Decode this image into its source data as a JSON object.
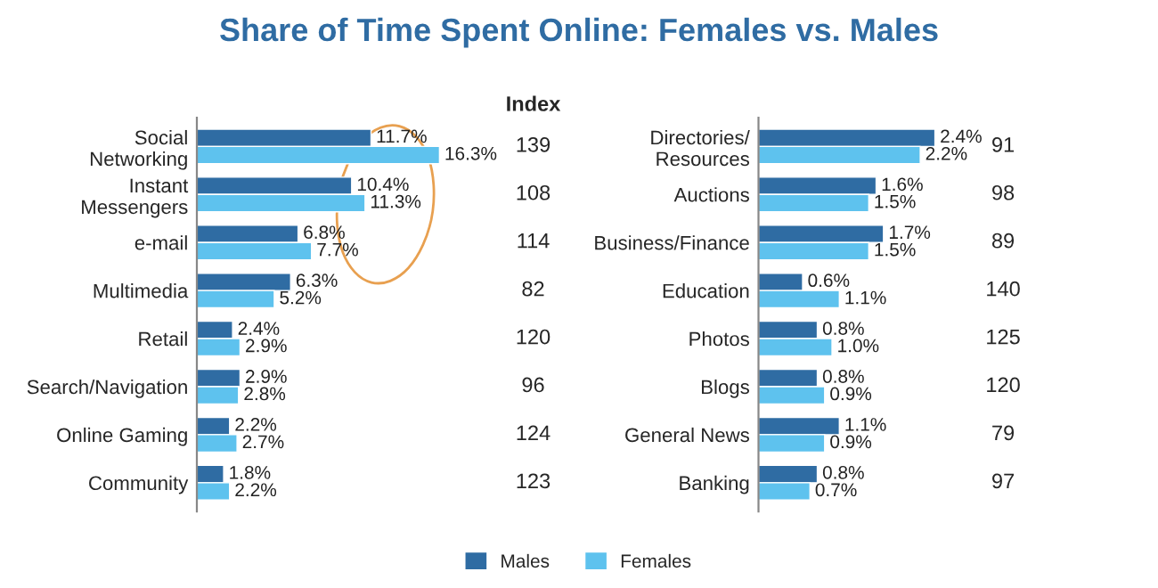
{
  "chart_data": [
    {
      "type": "bar",
      "orientation": "horizontal",
      "title": "Share of Time Spent Online: Females vs. Males",
      "categories": [
        "Social\nNetworking",
        "Instant\nMessengers",
        "e-mail",
        "Multimedia",
        "Retail",
        "Search/Navigation",
        "Online Gaming",
        "Community"
      ],
      "series": [
        {
          "name": "Males",
          "color": "#2f6ca3",
          "values": [
            11.7,
            10.4,
            6.8,
            6.3,
            2.4,
            2.9,
            2.2,
            1.8
          ],
          "value_labels": [
            "11.7%",
            "10.4%",
            "6.8%",
            "6.3%",
            "2.4%",
            "2.9%",
            "2.2%",
            "1.8%"
          ]
        },
        {
          "name": "Females",
          "color": "#5ec2ee",
          "values": [
            16.3,
            11.3,
            7.7,
            5.2,
            2.9,
            2.8,
            2.7,
            2.2
          ],
          "value_labels": [
            "16.3%",
            "11.3%",
            "7.7%",
            "5.2%",
            "2.9%",
            "2.8%",
            "2.7%",
            "2.2%"
          ]
        }
      ],
      "annotations": [
        "Index",
        "139",
        "108",
        "114",
        "82",
        "120",
        "96",
        "124",
        "123"
      ],
      "tick_labels": "y",
      "legend": "bottom"
    },
    {
      "type": "bar",
      "orientation": "horizontal",
      "categories": [
        "Directories/\nResources",
        "Auctions",
        "Business/Finance",
        "Education",
        "Photos",
        "Blogs",
        "General News",
        "Banking"
      ],
      "series": [
        {
          "color": "#2f6ca3",
          "values": [
            2.4,
            1.6,
            1.7,
            0.6,
            0.8,
            0.8,
            1.1,
            0.8
          ],
          "value_labels": [
            "2.4%",
            "1.6%",
            "1.7%",
            "0.6%",
            "0.8%",
            "0.8%",
            "1.1%",
            "0.8%"
          ]
        },
        {
          "color": "#5ec2ee",
          "values": [
            2.2,
            1.5,
            1.5,
            1.1,
            1.0,
            0.9,
            0.9,
            0.7
          ],
          "value_labels": [
            "2.2%",
            "1.5%",
            "1.5%",
            "1.1%",
            "1.0%",
            "0.9%",
            "0.9%",
            "0.7%"
          ]
        }
      ],
      "annotations": [
        "91",
        "98",
        "89",
        "140",
        "125",
        "120",
        "79",
        "97"
      ],
      "tick_labels": "y"
    }
  ]
}
